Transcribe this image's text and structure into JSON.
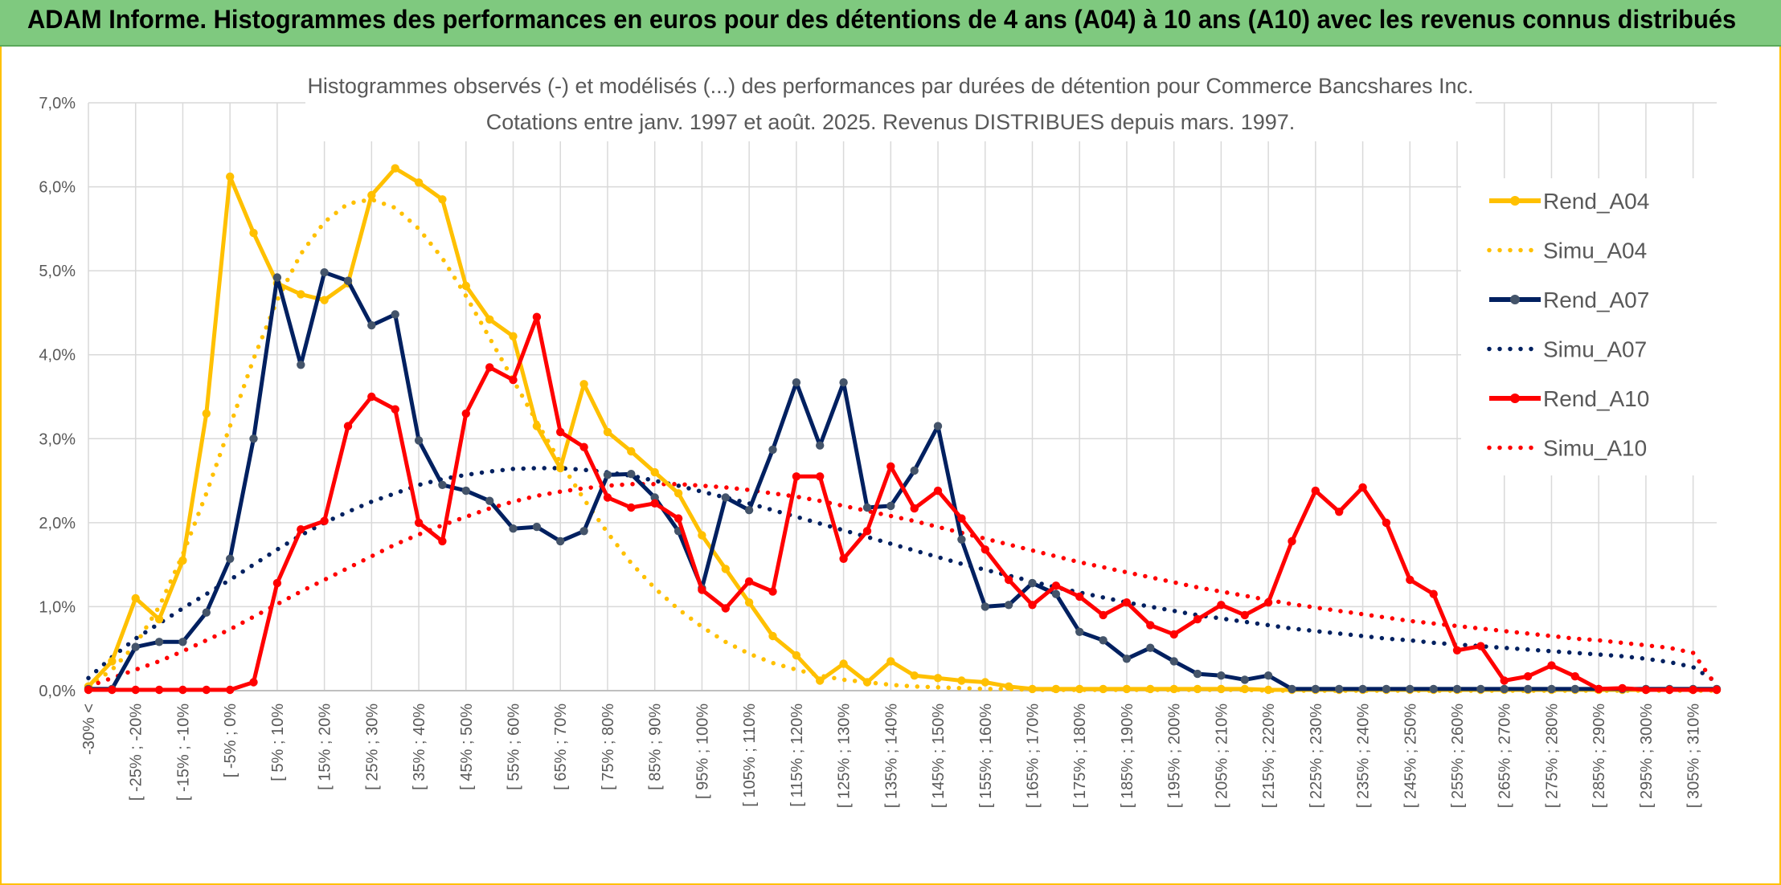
{
  "banner": {
    "title": "ADAM Informe. Histogrammes des performances en euros pour des détentions de 4 ans (A04) à 10 ans (A10) avec les revenus connus distribués"
  },
  "colors": {
    "banner": "#7fc97f",
    "frame": "#ffc000",
    "A04": "#ffc000",
    "A07": "#002060",
    "A10": "#ff0000",
    "grid": "#d9d9d9",
    "text": "#595959"
  },
  "chart_data": {
    "type": "line",
    "title": "Histogrammes observés (-) et modélisés (...) des performances par durées de détention pour Commerce Bancshares Inc.",
    "subtitle": "Cotations entre janv. 1997 et août. 2025. Revenus DISTRIBUES depuis mars. 1997.",
    "grid": true,
    "legend_position": "right",
    "ylim": [
      0,
      7
    ],
    "yticks": [
      "0,0%",
      "1,0%",
      "2,0%",
      "3,0%",
      "4,0%",
      "5,0%",
      "6,0%",
      "7,0%"
    ],
    "x_labels": [
      "-30% <",
      "[ -25% ; -20%",
      "[ -15% ; -10%",
      "[ -5% ; 0%",
      "[ 5% ; 10%",
      "[ 15% ; 20%",
      "[ 25% ; 30%",
      "[ 35% ; 40%",
      "[ 45% ; 50%",
      "[ 55% ; 60%",
      "[ 65% ; 70%",
      "[ 75% ; 80%",
      "[ 85% ; 90%",
      "[ 95% ; 100%",
      "[ 105% ; 110%",
      "[ 115% ; 120%",
      "[ 125% ; 130%",
      "[ 135% ; 140%",
      "[ 145% ; 150%",
      "[ 155% ; 160%",
      "[ 165% ; 170%",
      "[ 175% ; 180%",
      "[ 185% ; 190%",
      "[ 195% ; 200%",
      "[ 205% ; 210%",
      "[ 215% ; 220%",
      "[ 225% ; 230%",
      "[ 235% ; 240%",
      "[ 245% ; 250%",
      "[ 255% ; 260%",
      "[ 265% ; 270%",
      "[ 275% ; 280%",
      "[ 285% ; 290%",
      "[ 295% ; 300%",
      "[ 305% ; 310%"
    ],
    "series": [
      {
        "name": "Rend_A04",
        "style": "solid",
        "color": "#ffc000",
        "values": [
          0.05,
          0.35,
          1.1,
          0.85,
          1.55,
          3.3,
          6.12,
          5.45,
          4.85,
          4.72,
          4.65,
          4.85,
          5.9,
          6.22,
          6.05,
          5.85,
          4.82,
          4.42,
          4.22,
          3.15,
          2.65,
          3.65,
          3.08,
          2.85,
          2.6,
          2.35,
          1.85,
          1.45,
          1.05,
          0.65,
          0.42,
          0.12,
          0.32,
          0.1,
          0.35,
          0.18,
          0.15,
          0.12,
          0.1,
          0.05,
          0.02,
          0.02,
          0.02,
          0.02,
          0.02,
          0.02,
          0.02,
          0.02,
          0.02,
          0.02,
          0.01,
          0.01,
          0.01,
          0.01,
          0.01,
          0.01,
          0.01,
          0.01,
          0.01,
          0.01,
          0.01,
          0.01,
          0.01,
          0.01,
          0.01,
          0.01,
          0.01,
          0.01,
          0.01,
          0.01
        ]
      },
      {
        "name": "Simu_A04",
        "style": "dotted",
        "color": "#ffc000",
        "values": [
          0.05,
          0.25,
          0.55,
          1.0,
          1.62,
          2.35,
          3.15,
          3.95,
          4.65,
          5.2,
          5.58,
          5.8,
          5.85,
          5.75,
          5.5,
          5.15,
          4.7,
          4.2,
          3.7,
          3.2,
          2.72,
          2.28,
          1.88,
          1.52,
          1.22,
          0.97,
          0.76,
          0.58,
          0.44,
          0.33,
          0.25,
          0.18,
          0.13,
          0.1,
          0.07,
          0.05,
          0.04,
          0.03,
          0.02,
          0.02,
          0.01,
          0.01,
          0.01,
          0.01,
          0.01,
          0.01,
          0.01,
          0.01,
          0.01,
          0.01,
          0.0,
          0.0,
          0.0,
          0.0,
          0.0,
          0.0,
          0.0,
          0.0,
          0.0,
          0.0,
          0.0,
          0.0,
          0.0,
          0.0,
          0.0,
          0.0,
          0.0,
          0.0,
          0.0,
          0.0
        ]
      },
      {
        "name": "Rend_A07",
        "style": "solid",
        "color": "#002060",
        "values": [
          0.02,
          0.02,
          0.52,
          0.58,
          0.58,
          0.93,
          1.57,
          3.0,
          4.92,
          3.88,
          4.98,
          4.88,
          4.35,
          4.48,
          2.98,
          2.45,
          2.38,
          2.26,
          1.93,
          1.95,
          1.78,
          1.9,
          2.57,
          2.58,
          2.3,
          1.9,
          1.22,
          2.3,
          2.15,
          2.87,
          3.67,
          2.92,
          3.67,
          2.18,
          2.2,
          2.62,
          3.15,
          1.8,
          1.0,
          1.02,
          1.28,
          1.15,
          0.7,
          0.6,
          0.38,
          0.51,
          0.35,
          0.2,
          0.18,
          0.13,
          0.18,
          0.02,
          0.02,
          0.02,
          0.02,
          0.02,
          0.02,
          0.02,
          0.02,
          0.02,
          0.02,
          0.02,
          0.02,
          0.02,
          0.02,
          0.02,
          0.02,
          0.02,
          0.02,
          0.02
        ]
      },
      {
        "name": "Simu_A07",
        "style": "dotted",
        "color": "#002060",
        "values": [
          0.15,
          0.4,
          0.62,
          0.8,
          0.98,
          1.15,
          1.32,
          1.5,
          1.68,
          1.85,
          2.0,
          2.13,
          2.25,
          2.35,
          2.45,
          2.52,
          2.57,
          2.61,
          2.64,
          2.65,
          2.65,
          2.63,
          2.6,
          2.56,
          2.5,
          2.44,
          2.37,
          2.3,
          2.23,
          2.15,
          2.07,
          1.99,
          1.91,
          1.83,
          1.75,
          1.67,
          1.59,
          1.51,
          1.44,
          1.37,
          1.3,
          1.23,
          1.17,
          1.11,
          1.05,
          1.0,
          0.95,
          0.9,
          0.86,
          0.82,
          0.78,
          0.74,
          0.71,
          0.68,
          0.65,
          0.62,
          0.6,
          0.57,
          0.55,
          0.53,
          0.51,
          0.49,
          0.47,
          0.45,
          0.43,
          0.41,
          0.38,
          0.34,
          0.28,
          0.1
        ]
      },
      {
        "name": "Rend_A10",
        "style": "solid",
        "color": "#ff0000",
        "values": [
          0.01,
          0.01,
          0.01,
          0.01,
          0.01,
          0.01,
          0.01,
          0.1,
          1.28,
          1.92,
          2.02,
          3.15,
          3.5,
          3.35,
          2.0,
          1.78,
          3.3,
          3.85,
          3.7,
          4.45,
          3.08,
          2.9,
          2.3,
          2.18,
          2.23,
          2.05,
          1.2,
          0.98,
          1.3,
          1.18,
          2.55,
          2.55,
          1.57,
          1.9,
          2.67,
          2.17,
          2.38,
          2.05,
          1.68,
          1.32,
          1.02,
          1.25,
          1.12,
          0.9,
          1.05,
          0.78,
          0.67,
          0.85,
          1.02,
          0.9,
          1.05,
          1.78,
          2.38,
          2.13,
          2.42,
          2.0,
          1.32,
          1.15,
          0.48,
          0.53,
          0.12,
          0.17,
          0.3,
          0.17,
          0.02,
          0.03,
          0.01,
          0.01,
          0.01,
          0.01
        ]
      },
      {
        "name": "Simu_A10",
        "style": "dotted",
        "color": "#ff0000",
        "values": [
          0.05,
          0.15,
          0.25,
          0.35,
          0.47,
          0.6,
          0.73,
          0.88,
          1.03,
          1.18,
          1.32,
          1.46,
          1.6,
          1.74,
          1.86,
          1.97,
          2.07,
          2.17,
          2.25,
          2.32,
          2.37,
          2.41,
          2.44,
          2.46,
          2.46,
          2.46,
          2.44,
          2.42,
          2.39,
          2.35,
          2.31,
          2.26,
          2.2,
          2.14,
          2.08,
          2.02,
          1.95,
          1.88,
          1.81,
          1.74,
          1.67,
          1.6,
          1.53,
          1.47,
          1.41,
          1.35,
          1.29,
          1.23,
          1.18,
          1.13,
          1.08,
          1.03,
          0.99,
          0.95,
          0.91,
          0.87,
          0.83,
          0.8,
          0.77,
          0.74,
          0.71,
          0.68,
          0.65,
          0.62,
          0.6,
          0.57,
          0.54,
          0.51,
          0.45,
          0.05
        ]
      }
    ]
  }
}
